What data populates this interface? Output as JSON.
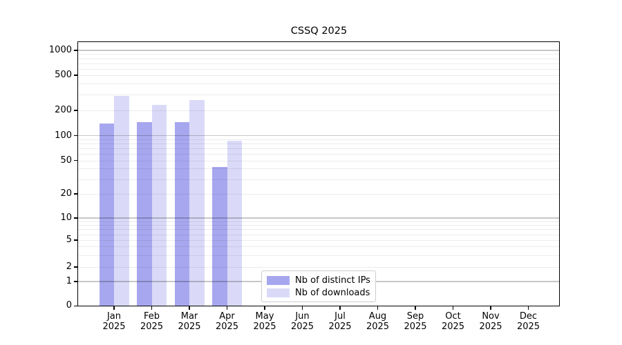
{
  "chart_data": {
    "type": "bar",
    "title": "CSSQ 2025",
    "yscale": "symlog-asinh (1-2-5 tick sequence)",
    "ylim": [
      0,
      1300
    ],
    "grid": "horizontal, major and minor, drawn above bars",
    "legend_position": "inside bottom-center",
    "yticks": [
      0,
      1,
      2,
      5,
      10,
      20,
      50,
      100,
      200,
      500,
      1000
    ],
    "categories": [
      "Jan",
      "Feb",
      "Mar",
      "Apr",
      "May",
      "Jun",
      "Jul",
      "Aug",
      "Sep",
      "Oct",
      "Nov",
      "Dec"
    ],
    "category_year": "2025",
    "series": [
      {
        "name": "Nb of distinct IPs",
        "color": "#a7a7ef",
        "values": [
          139,
          145,
          146,
          42,
          0,
          0,
          0,
          0,
          0,
          0,
          0,
          0
        ]
      },
      {
        "name": "Nb of downloads",
        "color": "#dadaf8",
        "values": [
          293,
          232,
          264,
          87,
          0,
          0,
          0,
          0,
          0,
          0,
          0,
          0
        ]
      }
    ]
  }
}
